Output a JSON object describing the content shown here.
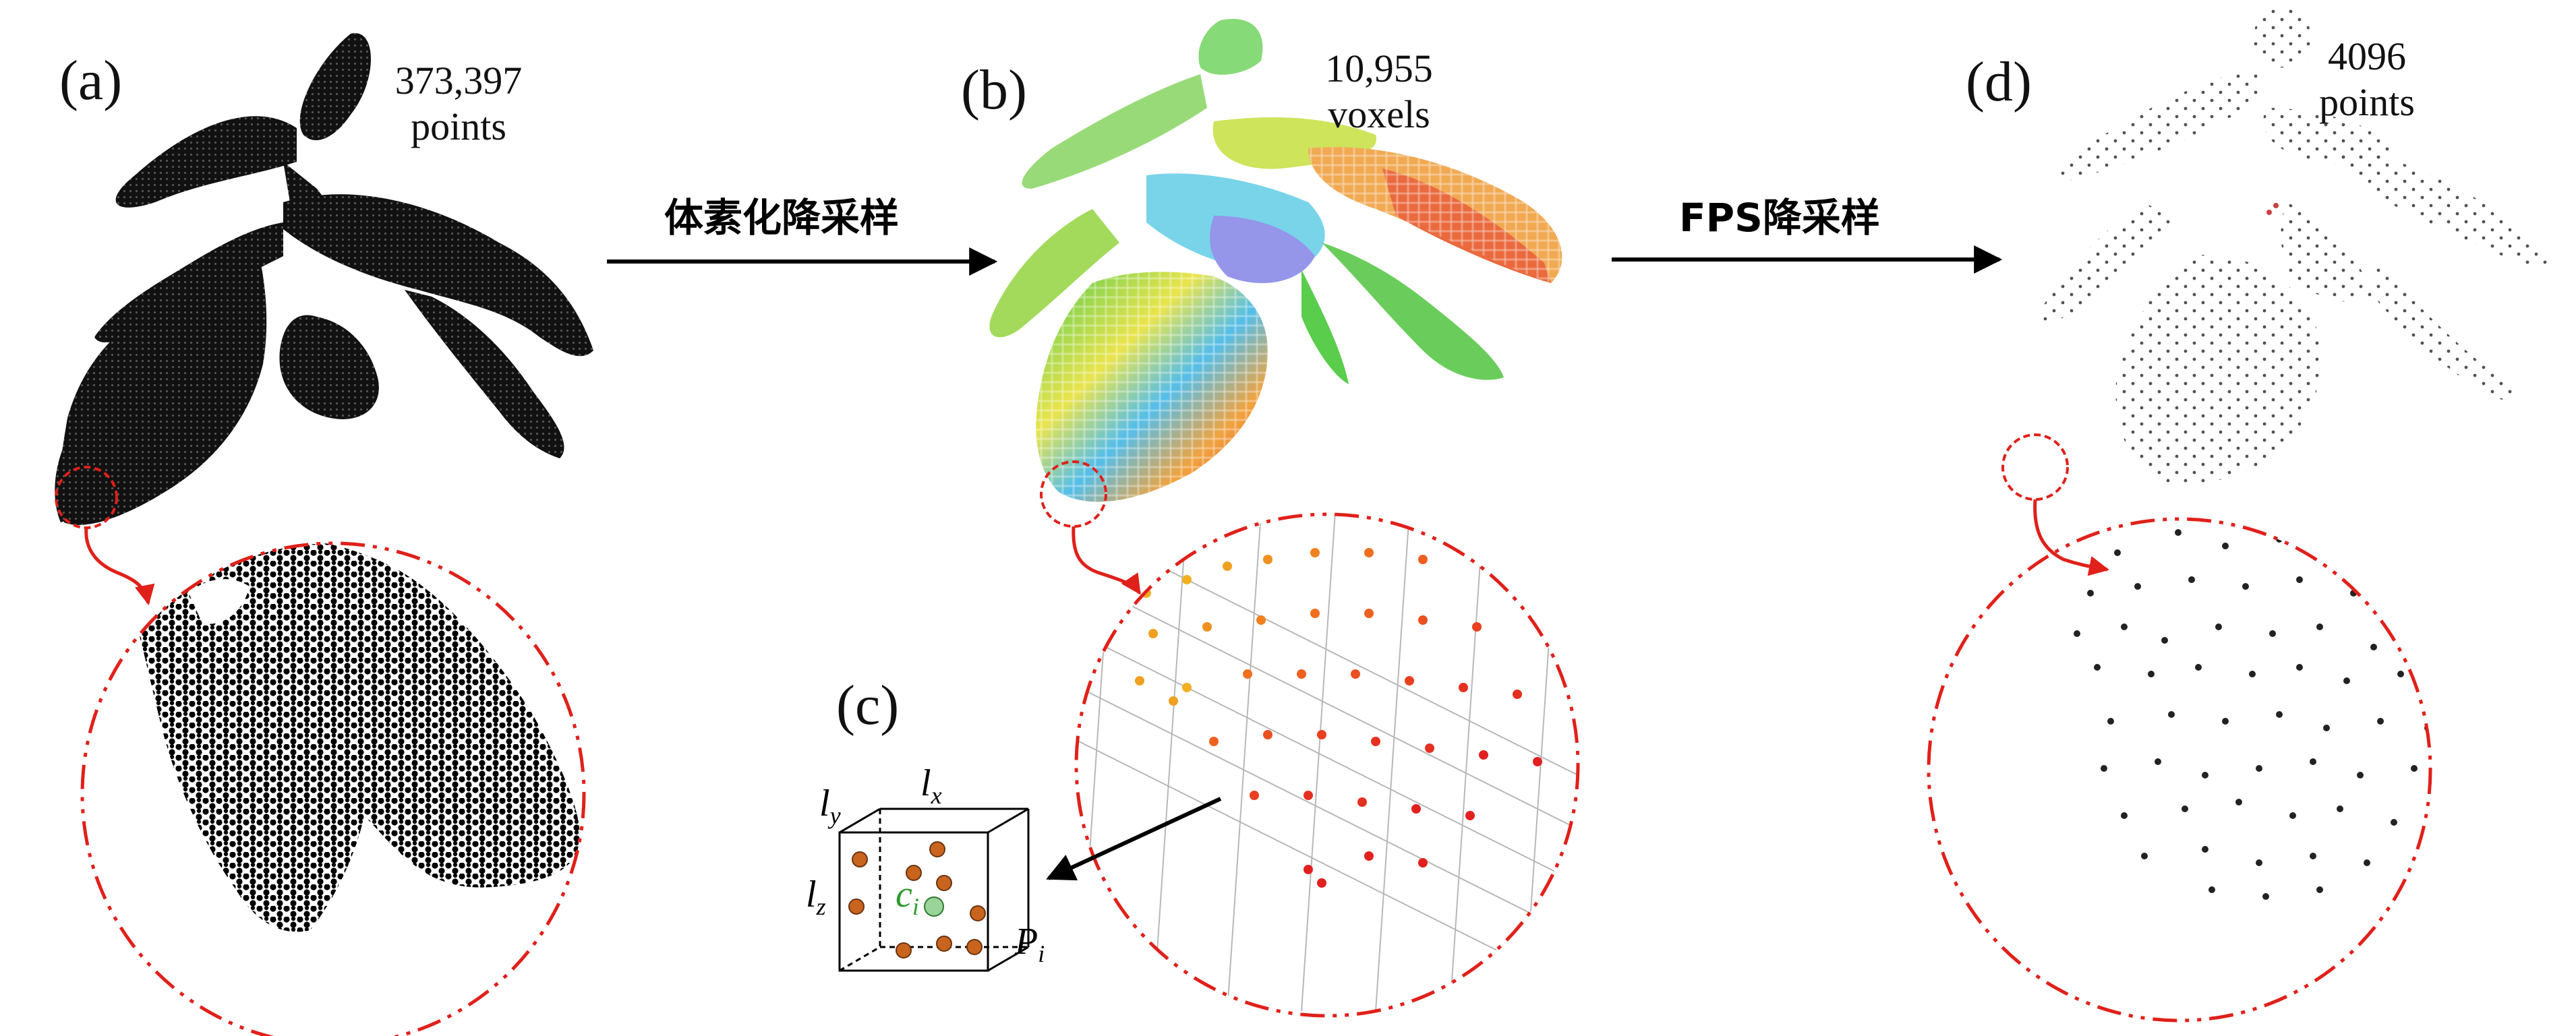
{
  "panels": {
    "a": {
      "label": "(a)",
      "count_value": "373,397",
      "count_unit": "points"
    },
    "b": {
      "label": "(b)",
      "count_value": "10,955",
      "count_unit": "voxels"
    },
    "c": {
      "label": "(c)",
      "ly": "l",
      "ly_sub": "y",
      "lx": "l",
      "lx_sub": "x",
      "lz": "l",
      "lz_sub": "z",
      "ci": "c",
      "ci_sub": "i",
      "Pi": "P",
      "Pi_sub": "i"
    },
    "d": {
      "label": "(d)",
      "count_value": "4096",
      "count_unit": "points"
    }
  },
  "steps": {
    "voxel_downsample": "体素化降采样",
    "fps_downsample": "FPS降采样"
  },
  "colors": {
    "arrow": "#000000",
    "zoom_circle": "#e0201a",
    "points_dense": "#111111",
    "points_fps": "#222222",
    "voxel_center": "#2e9a2e",
    "voxel_point": "#c8641e"
  }
}
